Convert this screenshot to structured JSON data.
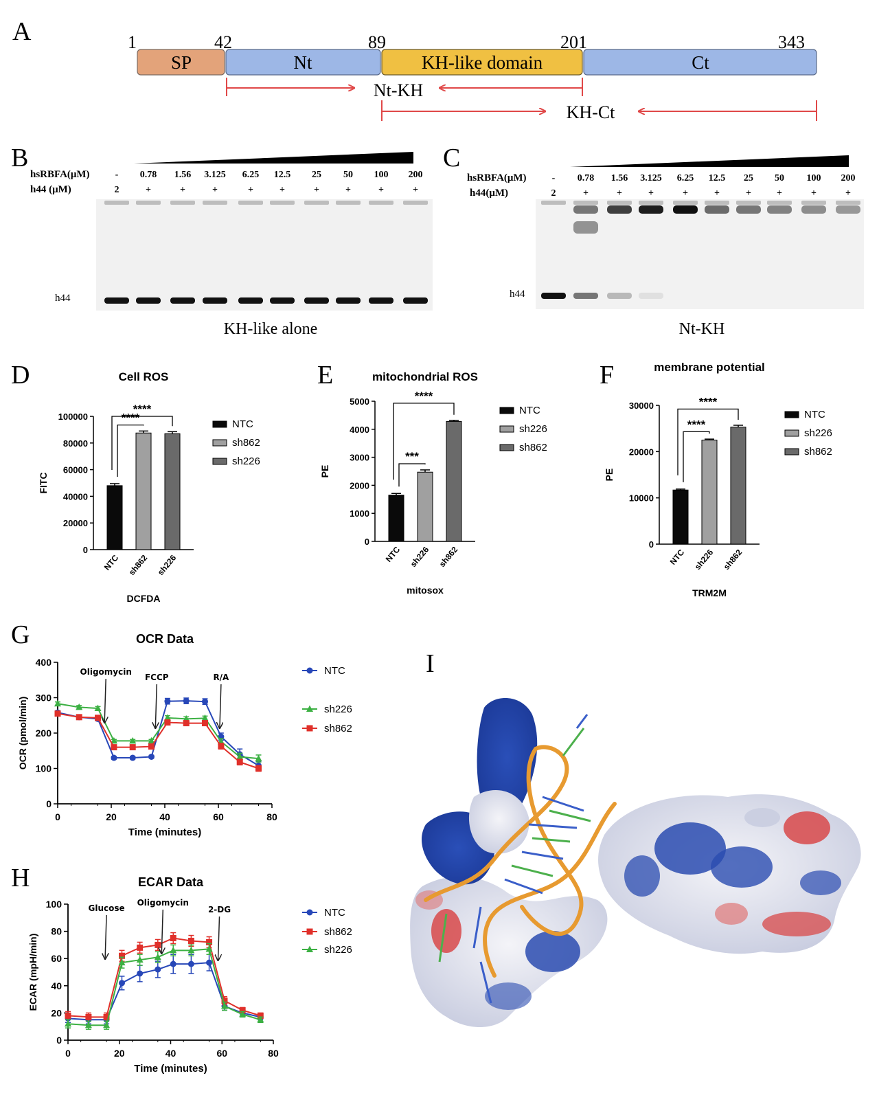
{
  "panel_a": {
    "letter": "A",
    "positions": [
      "1",
      "42",
      "89",
      "201",
      "343"
    ],
    "domains": [
      {
        "label": "SP",
        "color": "#e3a37a"
      },
      {
        "label": "Nt",
        "color": "#9db7e6"
      },
      {
        "label": "KH-like domain",
        "color": "#f0c042"
      },
      {
        "label": "Ct",
        "color": "#9db7e6"
      }
    ],
    "construct_1": "Nt-KH",
    "construct_2": "KH-Ct",
    "arrow_color": "#e04848"
  },
  "panel_b": {
    "letter": "B",
    "row1_label": "hsRBFA(μM)",
    "row2_label": "h44  (μM)",
    "concentrations": [
      "-",
      "0.78",
      "1.56",
      "3.125",
      "6.25",
      "12.5",
      "25",
      "50",
      "100",
      "200"
    ],
    "h44_values": [
      "2",
      "+",
      "+",
      "+",
      "+",
      "+",
      "+",
      "+",
      "+",
      "+"
    ],
    "band_label": "h44",
    "caption": "KH-like alone",
    "free_band": [
      1,
      1,
      1,
      1,
      1,
      1,
      1,
      1,
      1,
      1
    ],
    "shift_band": [
      0,
      0,
      0,
      0,
      0,
      0,
      0,
      0,
      0,
      0
    ]
  },
  "panel_c": {
    "letter": "C",
    "row1_label": "hsRBFA(μM)",
    "row2_label": "h44(μM)",
    "concentrations": [
      "-",
      "0.78",
      "1.56",
      "3.125",
      "6.25",
      "12.5",
      "25",
      "50",
      "100",
      "200"
    ],
    "h44_values": [
      "2",
      "+",
      "+",
      "+",
      "+",
      "+",
      "+",
      "+",
      "+",
      "+"
    ],
    "band_label": "h44",
    "caption": "Nt-KH",
    "free_band": [
      1,
      0.55,
      0.25,
      0.08,
      0,
      0,
      0,
      0,
      0,
      0
    ],
    "shift_band": [
      0,
      0.55,
      0.8,
      0.95,
      1,
      0.6,
      0.55,
      0.5,
      0.45,
      0.4
    ]
  },
  "chart_d": {
    "letter": "D",
    "chart_data": {
      "type": "bar",
      "title": "Cell ROS",
      "xlabel": "DCFDA",
      "ylabel": "FITC",
      "categories": [
        "NTC",
        "sh862",
        "sh226"
      ],
      "values": [
        48000,
        87500,
        87000
      ],
      "errors": [
        1500,
        1500,
        1500
      ],
      "colors": [
        "#0a0a0a",
        "#a0a0a0",
        "#6a6a6a"
      ],
      "ylim": [
        0,
        100000
      ],
      "yticks": [
        "0",
        "20000",
        "40000",
        "60000",
        "80000",
        "100000"
      ],
      "significance": [
        {
          "from": 0,
          "to": 1,
          "label": "****"
        },
        {
          "from": 0,
          "to": 2,
          "label": "****"
        }
      ],
      "legend": [
        "NTC",
        "sh862",
        "sh226"
      ]
    }
  },
  "chart_e": {
    "letter": "E",
    "chart_data": {
      "type": "bar",
      "title": "mitochondrial ROS",
      "xlabel": "mitosox",
      "ylabel": "PE",
      "categories": [
        "NTC",
        "sh226",
        "sh862"
      ],
      "values": [
        1650,
        2470,
        4280
      ],
      "errors": [
        60,
        80,
        40
      ],
      "colors": [
        "#0a0a0a",
        "#a0a0a0",
        "#6a6a6a"
      ],
      "ylim": [
        0,
        5000
      ],
      "yticks": [
        "0",
        "1000",
        "2000",
        "3000",
        "4000",
        "5000"
      ],
      "significance": [
        {
          "from": 0,
          "to": 1,
          "label": "***"
        },
        {
          "from": 0,
          "to": 2,
          "label": "****"
        }
      ],
      "legend": [
        "NTC",
        "sh226",
        "sh862"
      ]
    }
  },
  "chart_f": {
    "letter": "F",
    "chart_data": {
      "type": "bar",
      "title": "membrane potential",
      "xlabel": "TRM2M",
      "ylabel": "PE",
      "categories": [
        "NTC",
        "sh226",
        "sh862"
      ],
      "values": [
        11700,
        22500,
        25300
      ],
      "errors": [
        200,
        200,
        400
      ],
      "colors": [
        "#0a0a0a",
        "#a0a0a0",
        "#6a6a6a"
      ],
      "ylim": [
        0,
        30000
      ],
      "yticks": [
        "0",
        "10000",
        "20000",
        "30000"
      ],
      "significance": [
        {
          "from": 0,
          "to": 1,
          "label": "****"
        },
        {
          "from": 0,
          "to": 2,
          "label": "****"
        }
      ],
      "legend": [
        "NTC",
        "sh226",
        "sh862"
      ]
    }
  },
  "chart_g": {
    "letter": "G",
    "chart_data": {
      "type": "line",
      "title": "OCR Data",
      "xlabel": "Time (minutes)",
      "ylabel": "OCR (pmol/min)",
      "xlim": [
        0,
        80
      ],
      "ylim": [
        0,
        400
      ],
      "xticks": [
        "0",
        "20",
        "40",
        "60",
        "80"
      ],
      "yticks": [
        "0",
        "100",
        "200",
        "300",
        "400"
      ],
      "x": [
        0,
        8,
        15,
        21,
        28,
        35,
        41,
        48,
        55,
        61,
        68,
        75
      ],
      "series": [
        {
          "name": "NTC",
          "color": "#2747b8",
          "marker": "circle",
          "values": [
            258,
            245,
            240,
            130,
            130,
            133,
            290,
            291,
            289,
            190,
            140,
            108
          ],
          "errors": [
            5,
            5,
            5,
            4,
            4,
            4,
            8,
            8,
            8,
            10,
            15,
            12
          ]
        },
        {
          "name": "sh226",
          "color": "#3cb043",
          "marker": "triangle",
          "values": [
            283,
            273,
            270,
            178,
            178,
            178,
            243,
            240,
            242,
            176,
            133,
            128
          ],
          "errors": [
            5,
            5,
            5,
            4,
            4,
            4,
            6,
            6,
            6,
            8,
            10,
            10
          ]
        },
        {
          "name": "sh862",
          "color": "#e0302a",
          "marker": "square",
          "values": [
            255,
            245,
            243,
            160,
            160,
            162,
            230,
            228,
            228,
            163,
            118,
            100
          ],
          "errors": [
            5,
            5,
            5,
            4,
            4,
            4,
            6,
            6,
            6,
            8,
            8,
            8
          ]
        }
      ],
      "annotations": [
        {
          "label": "Oligomycin",
          "x": 18
        },
        {
          "label": "FCCP",
          "x": 37
        },
        {
          "label": "R/A",
          "x": 61
        }
      ]
    }
  },
  "chart_h": {
    "letter": "H",
    "chart_data": {
      "type": "line",
      "title": "ECAR Data",
      "xlabel": "Time (minutes)",
      "ylabel": "ECAR (mpH/min)",
      "xlim": [
        0,
        80
      ],
      "ylim": [
        0,
        100
      ],
      "xticks": [
        "0",
        "20",
        "40",
        "60",
        "80"
      ],
      "yticks": [
        "0",
        "20",
        "40",
        "60",
        "80",
        "100"
      ],
      "x": [
        0,
        8,
        15,
        21,
        28,
        35,
        41,
        48,
        55,
        61,
        68,
        75
      ],
      "series": [
        {
          "name": "NTC",
          "color": "#2747b8",
          "marker": "circle",
          "values": [
            16,
            15,
            15,
            42,
            49,
            52,
            56,
            56,
            57,
            25,
            20,
            17
          ],
          "errors": [
            3,
            3,
            3,
            5,
            6,
            6,
            7,
            7,
            6,
            3,
            2,
            2
          ]
        },
        {
          "name": "sh862",
          "color": "#e0302a",
          "marker": "square",
          "values": [
            18,
            17,
            17,
            62,
            68,
            70,
            75,
            73,
            72,
            29,
            22,
            18
          ],
          "errors": [
            3,
            3,
            3,
            4,
            4,
            4,
            4,
            4,
            4,
            3,
            2,
            2
          ]
        },
        {
          "name": "sh226",
          "color": "#3cb043",
          "marker": "triangle",
          "values": [
            12,
            11,
            11,
            57,
            59,
            61,
            66,
            66,
            67,
            25,
            19,
            15
          ],
          "errors": [
            3,
            3,
            3,
            4,
            4,
            4,
            4,
            4,
            4,
            3,
            2,
            2
          ]
        }
      ],
      "annotations": [
        {
          "label": "Glucose",
          "x": 15
        },
        {
          "label": "Oligomycin",
          "x": 37
        },
        {
          "label": "2-DG",
          "x": 59
        }
      ]
    }
  },
  "panel_i": {
    "letter": "I"
  }
}
